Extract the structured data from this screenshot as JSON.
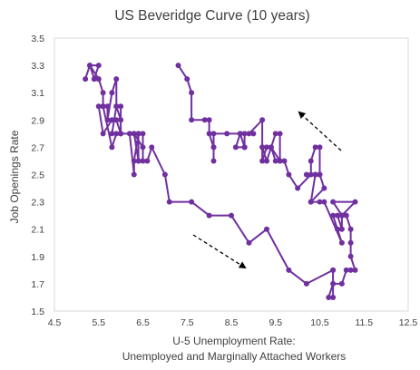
{
  "chart_data": {
    "type": "line",
    "title": "US Beveridge Curve (10 years)",
    "xlabel": [
      "U-5 Unemployment Rate:",
      "Unemployed and Marginally Attached Workers"
    ],
    "ylabel": "Job Openings Rate",
    "xlim": [
      4.5,
      12.5
    ],
    "ylim": [
      1.5,
      3.5
    ],
    "xticks": [
      "4.5",
      "5.5",
      "6.5",
      "7.5",
      "8.5",
      "9.5",
      "10.5",
      "11.5",
      "12.5"
    ],
    "yticks": [
      "1.5",
      "1.7",
      "1.9",
      "2.1",
      "2.3",
      "2.5",
      "2.7",
      "2.9",
      "3.1",
      "3.3",
      "3.5"
    ],
    "grid": false,
    "legend": "none",
    "series_color": "#7030a0",
    "annotations": [
      "dashed-arrow-down-right",
      "dashed-arrow-up-left"
    ],
    "series": [
      {
        "x": [
          5.2,
          5.3,
          5.5,
          5.4,
          5.5,
          5.3,
          5.4,
          5.5,
          5.6,
          5.6,
          5.7,
          5.7,
          5.8,
          5.9,
          5.9,
          6.0,
          6.0,
          5.9,
          5.8,
          5.6,
          5.5,
          5.6,
          5.8,
          5.9,
          6.0,
          6.0,
          5.9,
          5.8,
          6.2,
          6.3,
          6.3,
          6.4,
          6.4,
          6.4,
          6.5,
          6.5,
          6.3,
          6.5,
          6.3,
          6.4,
          6.6,
          6.7,
          7.0,
          7.1,
          7.6,
          8.0,
          8.5,
          8.9,
          9.3,
          9.8,
          10.2,
          10.8,
          10.8,
          10.8,
          10.7,
          10.8,
          11.0,
          11.1,
          11.2,
          11.3,
          11.2,
          11.2,
          11.2,
          11.1,
          11.0,
          11.0,
          10.9,
          11.0,
          11.0,
          11.3,
          10.8,
          11.0,
          10.8,
          10.9,
          11.0,
          10.6,
          10.5,
          10.3,
          10.6,
          10.5,
          10.4,
          10.3,
          10.4,
          10.2,
          10.5,
          10.5,
          10.4,
          10.3,
          10.3,
          10.0,
          9.8,
          9.7,
          9.6,
          9.5,
          9.4,
          9.6,
          9.6,
          9.5,
          9.3,
          9.4,
          9.3,
          9.2,
          9.3,
          9.2,
          9.2,
          9.2,
          8.9,
          9.0,
          8.8,
          8.8,
          8.8,
          8.7,
          8.8,
          8.6,
          8.7,
          8.4,
          8.1,
          8.1,
          8.1,
          8.1,
          8.0,
          8.0,
          7.9,
          7.6,
          7.6,
          7.5,
          7.3
        ],
        "y": [
          3.2,
          3.3,
          3.3,
          3.2,
          3.2,
          3.3,
          3.2,
          3.2,
          3.1,
          3.0,
          3.0,
          2.9,
          3.1,
          3.2,
          3.0,
          3.0,
          2.8,
          2.8,
          2.7,
          3.0,
          3.0,
          2.8,
          2.9,
          2.9,
          2.8,
          2.9,
          3.0,
          2.8,
          2.8,
          2.5,
          2.6,
          2.8,
          2.8,
          2.6,
          2.6,
          2.8,
          2.8,
          2.7,
          2.8,
          2.6,
          2.6,
          2.7,
          2.5,
          2.3,
          2.3,
          2.2,
          2.2,
          2.0,
          2.1,
          1.8,
          1.7,
          1.8,
          1.8,
          1.6,
          1.6,
          1.7,
          1.7,
          1.8,
          1.8,
          1.8,
          1.9,
          2.0,
          2.1,
          2.2,
          2.2,
          2.1,
          2.2,
          2.2,
          2.2,
          2.3,
          2.3,
          2.2,
          2.2,
          2.1,
          2.0,
          2.3,
          2.3,
          2.3,
          2.4,
          2.5,
          2.5,
          2.3,
          2.5,
          2.5,
          2.5,
          2.7,
          2.7,
          2.6,
          2.5,
          2.4,
          2.5,
          2.6,
          2.6,
          2.6,
          2.7,
          2.6,
          2.8,
          2.8,
          2.6,
          2.7,
          2.6,
          2.7,
          2.7,
          2.6,
          2.7,
          2.9,
          2.8,
          2.8,
          2.8,
          2.7,
          2.7,
          2.8,
          2.7,
          2.7,
          2.8,
          2.8,
          2.8,
          2.7,
          2.6,
          2.7,
          2.8,
          2.9,
          2.9,
          2.9,
          3.1,
          3.2,
          3.3
        ]
      }
    ]
  }
}
